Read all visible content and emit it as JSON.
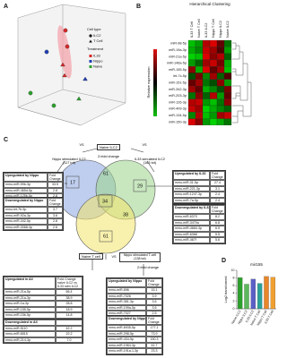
{
  "panel_labels": [
    "A",
    "B",
    "C",
    "D"
  ],
  "panel_a": {
    "cell_type_title": "Cell type",
    "cell_types": [
      "ILC2",
      "T Cell"
    ],
    "treatment_title": "Treatment",
    "treatments": [
      "IL33",
      "Nippo",
      "Naive"
    ]
  },
  "panel_b": {
    "title": "Hierarchical Clustering",
    "key_label": "Relative expression",
    "columns": [
      "IL33 T Cell",
      "Naive T Cell",
      "IL33 ILC2",
      "Nippo T Cell",
      "Nippo ILC2",
      "Naive ILC2"
    ],
    "rows": [
      "miR-98-5p",
      "miR-19a-3p",
      "miR-21a-5p",
      "miR-146a-5p",
      "miR-155-5p",
      "let-7c-5p",
      "miR-151-5p",
      "miR-342-3p",
      "miR-203-3p",
      "miR-126-3p",
      "miR-409-3p",
      "miR-134-5p",
      "miR-150-3p"
    ],
    "matrix": [
      [
        -0.8,
        -0.6,
        0.7,
        0.9,
        0.3,
        -0.4
      ],
      [
        -0.7,
        -0.5,
        0.8,
        0.6,
        0.2,
        -0.6
      ],
      [
        -0.9,
        -0.8,
        0.9,
        0.5,
        0.7,
        -0.3
      ],
      [
        -0.6,
        -0.3,
        0.6,
        0.8,
        0.4,
        -0.7
      ],
      [
        0.5,
        -0.7,
        0.9,
        0.3,
        0.6,
        -0.8
      ],
      [
        -0.2,
        0.4,
        -0.5,
        0.6,
        -0.3,
        0.2
      ],
      [
        0.3,
        0.6,
        -0.4,
        -0.2,
        0.5,
        -0.6
      ],
      [
        0.6,
        0.3,
        -0.7,
        -0.5,
        -0.2,
        0.4
      ],
      [
        -0.4,
        0.5,
        -0.3,
        0.7,
        -0.6,
        0.3
      ],
      [
        0.7,
        0.8,
        -0.6,
        -0.8,
        -0.4,
        0.5
      ],
      [
        0.8,
        0.6,
        -0.9,
        -0.7,
        -0.5,
        -0.3
      ],
      [
        -0.5,
        0.7,
        -0.8,
        -0.6,
        0.6,
        0.8
      ],
      [
        0.9,
        0.5,
        -0.6,
        -0.9,
        -0.7,
        -0.4
      ]
    ]
  },
  "panel_c": {
    "naive_ilc2": "Naive ILC2",
    "nippo_ilc2": "Nippo stimulated ILC2 (117 tot)",
    "il33_ilc2": "IL33 simulated ILC2 (163 tot)",
    "fold_top": "2>fold change",
    "vs": "VS",
    "naive_t": "Naive T cell",
    "nippo_t": "Nippo stimulated T-cell (138 tot)",
    "fold_bottom": "2>fold change",
    "regions": [
      17,
      61,
      29,
      34,
      38,
      61
    ],
    "tables": {
      "up_nippo_ilc2": {
        "title": "Upregulated by Nippo",
        "header": "Fold Change",
        "rows": [
          [
            "mmu-miR-99b-3p",
            "33.5"
          ],
          [
            "mmu-miR-465d-5p",
            "2.8"
          ],
          [
            "mmu-miR-125b-5p",
            "2.8"
          ]
        ]
      },
      "down_nippo_ilc2": {
        "title": "Downregulated by Nippo",
        "header": "Fold Change",
        "rows": [
          [
            "mmu-let-7b-5p",
            "3.7"
          ],
          [
            "mmu-miR-92a-3p",
            "3.6"
          ],
          [
            "mmu-miR-342-5p",
            "2.8"
          ],
          [
            "mmu-miR-3068-3p",
            "2.6"
          ]
        ]
      },
      "up_il33": {
        "title": "Upregulated by IL33",
        "header": "Fold Change",
        "rows": [
          [
            "mmu-miR-31-5p",
            "27.4"
          ],
          [
            "mmu-miR-221-3p",
            "3.1"
          ],
          [
            "mmu-miR-1247-3p",
            "2.4"
          ],
          [
            "mmu-miR-7a-5p",
            "2.4"
          ]
        ]
      },
      "down_il33": {
        "title": "Downregulated by IL33",
        "header": "Fold Change",
        "rows": [
          [
            "mmu-miR-6370",
            "8.2"
          ],
          [
            "mmu-miR-3470a",
            "6.8"
          ],
          [
            "mmu-miR-466h-3p",
            "6.5"
          ],
          [
            "mmu-miR-6368",
            "5.5"
          ],
          [
            "mmu-miR-467f",
            "5.6"
          ]
        ]
      },
      "up_all": {
        "title": "Upregulated in All",
        "header": "Fold Change naive ILC2 vs IL33 stim ILC2",
        "rows": [
          [
            "mmu-miR-21a-5p",
            "66.4"
          ],
          [
            "mmu-miR-21a-3p",
            "38.9"
          ],
          [
            "mmu-miR-1a-3p",
            "28.8"
          ],
          [
            "mmu-miR-155-5p",
            "18.9"
          ],
          [
            "mmu-miR-15b-5p",
            "14.8"
          ]
        ]
      },
      "down_all": {
        "title": "Downregulated in All",
        "header": "",
        "rows": [
          [
            "mmu-miR-5110",
            "42.2"
          ],
          [
            "mmu-miR-6515",
            "22.2"
          ],
          [
            "mmu-miR-214-3p",
            "7.0"
          ]
        ]
      },
      "up_nippo_t": {
        "title": "Upregulated by Nippo",
        "header": "Fold Change",
        "rows": [
          [
            "mmu-miR-696",
            "15.1"
          ],
          [
            "mmu-miR-7026",
            "3.9"
          ],
          [
            "mmu-miR-381-3p",
            "3.6"
          ],
          [
            "mmu-miR-199a-5p",
            "3.6"
          ],
          [
            "mmu-miR-7027",
            "2.5"
          ]
        ]
      },
      "down_nippo_t": {
        "title": "Downregulated by Nippo",
        "header": "Fold Change",
        "rows": [
          [
            "mmu-miR-6935-5p",
            "177.1"
          ],
          [
            "mmu-miR-298-5p",
            "73.9"
          ],
          [
            "mmu-miR-434-5p",
            "150.3"
          ],
          [
            "mmu-miR-1964-3p",
            "41.7"
          ],
          [
            "mmu-miR-191a-1-3p",
            "23.3"
          ]
        ]
      }
    }
  },
  "panel_d": {
    "chart_data": {
      "type": "bar",
      "title": "mir155",
      "y_label": "Log2 transformed",
      "categories": [
        "Naive ILC2",
        "Nippo ILC2",
        "IL33 ILC2",
        "Naive T Cell",
        "Nippo T Cell",
        "IL33 T Cell"
      ],
      "values": [
        8.1,
        6.4,
        7.7,
        6.6,
        8.4,
        8.2
      ],
      "colors": [
        "#2ca02c",
        "#5cb85c",
        "#5b5fc7",
        "#2aa198",
        "#e8862a",
        "#f0a030"
      ],
      "ylim": [
        0,
        10
      ],
      "yticks": [
        0,
        2,
        4,
        6,
        8,
        10
      ]
    }
  }
}
